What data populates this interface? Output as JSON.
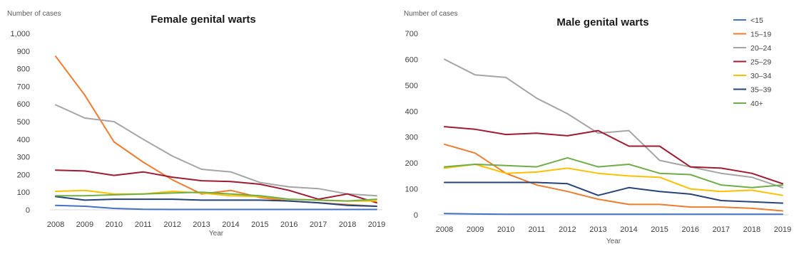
{
  "legend": {
    "position": "right",
    "entries": [
      "<15",
      "15–19",
      "20–24",
      "25–29",
      "30–34",
      "35–39",
      "40+"
    ],
    "colors": [
      "#4472c4",
      "#ed7d31",
      "#a5a5a5",
      "#9e1b32",
      "#ffc000",
      "#264478",
      "#70ad47"
    ]
  },
  "chart_data": [
    {
      "type": "line",
      "title": "Female genital warts",
      "ylabel": "Number of cases",
      "xlabel": "Year",
      "ylim": [
        0,
        1000
      ],
      "yticks": [
        0,
        100,
        200,
        300,
        400,
        500,
        600,
        700,
        800,
        900,
        1000
      ],
      "ytick_labels": [
        "0",
        "100",
        "200",
        "300",
        "400",
        "500",
        "600",
        "700",
        "800",
        "900",
        "1,000"
      ],
      "grid": false,
      "x": [
        "2008",
        "2009",
        "2010",
        "2011",
        "2012",
        "2013",
        "2014",
        "2015",
        "2016",
        "2017",
        "2018",
        "2019"
      ],
      "series": [
        {
          "name": "<15",
          "values": [
            25,
            20,
            8,
            3,
            2,
            2,
            2,
            2,
            2,
            2,
            2,
            2
          ]
        },
        {
          "name": "15–19",
          "values": [
            870,
            650,
            385,
            270,
            170,
            90,
            110,
            70,
            50,
            40,
            30,
            20
          ]
        },
        {
          "name": "20–24",
          "values": [
            595,
            520,
            500,
            400,
            305,
            230,
            215,
            155,
            130,
            120,
            90,
            80
          ]
        },
        {
          "name": "25–29",
          "values": [
            225,
            220,
            195,
            215,
            185,
            165,
            160,
            145,
            110,
            60,
            90,
            40
          ]
        },
        {
          "name": "30–34",
          "values": [
            105,
            110,
            90,
            90,
            105,
            95,
            80,
            75,
            60,
            55,
            50,
            50
          ]
        },
        {
          "name": "35–39",
          "values": [
            75,
            55,
            60,
            60,
            60,
            55,
            55,
            55,
            50,
            40,
            25,
            20
          ]
        },
        {
          "name": "40+",
          "values": [
            80,
            80,
            85,
            90,
            95,
            100,
            90,
            80,
            60,
            55,
            50,
            60
          ]
        }
      ]
    },
    {
      "type": "line",
      "title": "Male genital warts",
      "ylabel": "Number of cases",
      "xlabel": "Year",
      "ylim": [
        0,
        700
      ],
      "yticks": [
        0,
        100,
        200,
        300,
        400,
        500,
        600,
        700
      ],
      "ytick_labels": [
        "0",
        "100",
        "200",
        "300",
        "400",
        "500",
        "600",
        "700"
      ],
      "grid": false,
      "x": [
        "2008",
        "2009",
        "2010",
        "2011",
        "2012",
        "2013",
        "2014",
        "2015",
        "2016",
        "2017",
        "2018",
        "2019"
      ],
      "series": [
        {
          "name": "<15",
          "values": [
            5,
            3,
            2,
            2,
            2,
            2,
            2,
            2,
            2,
            2,
            2,
            2
          ]
        },
        {
          "name": "15–19",
          "values": [
            272,
            238,
            160,
            115,
            90,
            60,
            40,
            40,
            30,
            30,
            25,
            15
          ]
        },
        {
          "name": "20–24",
          "values": [
            600,
            540,
            530,
            450,
            390,
            315,
            325,
            210,
            185,
            160,
            145,
            105
          ]
        },
        {
          "name": "25–29",
          "values": [
            340,
            330,
            310,
            315,
            305,
            325,
            265,
            265,
            185,
            180,
            160,
            120
          ]
        },
        {
          "name": "30–34",
          "values": [
            180,
            195,
            160,
            165,
            180,
            160,
            150,
            145,
            100,
            90,
            95,
            75
          ]
        },
        {
          "name": "35–39",
          "values": [
            125,
            125,
            125,
            125,
            120,
            75,
            105,
            90,
            80,
            55,
            50,
            45
          ]
        },
        {
          "name": "40+",
          "values": [
            185,
            195,
            190,
            185,
            220,
            185,
            195,
            160,
            155,
            115,
            105,
            115
          ]
        }
      ]
    }
  ]
}
